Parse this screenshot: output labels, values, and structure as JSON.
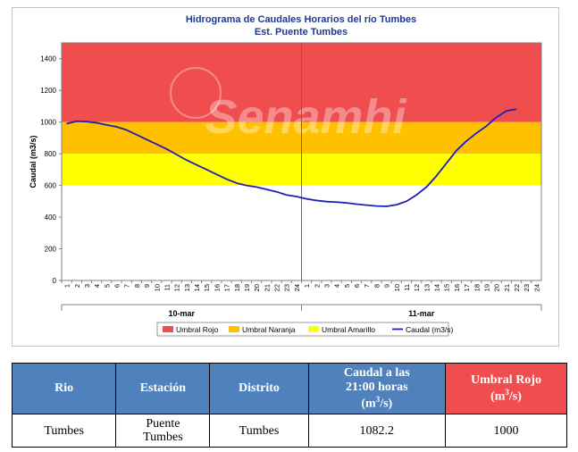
{
  "chart_data": {
    "type": "line",
    "title": "Hidrograma de Caudales Horarios del río Tumbes",
    "subtitle": "Est. Puente Tumbes",
    "ylabel": "Caudal  (m3/s)",
    "ylim": [
      0,
      1500
    ],
    "yticks": [
      0,
      200,
      400,
      600,
      800,
      1000,
      1200,
      1400
    ],
    "x_days": [
      "10-mar",
      "11-mar"
    ],
    "x_hour_labels": [
      "1",
      "2",
      "3",
      "4",
      "5",
      "6",
      "7",
      "8",
      "9",
      "10",
      "11",
      "12",
      "13",
      "14",
      "15",
      "16",
      "17",
      "18",
      "19",
      "20",
      "21",
      "22",
      "23",
      "24",
      "1",
      "2",
      "3",
      "4",
      "5",
      "6",
      "7",
      "8",
      "9",
      "10",
      "11",
      "12",
      "13",
      "14",
      "15",
      "16",
      "17",
      "18",
      "19",
      "20",
      "21",
      "22",
      "23",
      "24"
    ],
    "bands": [
      {
        "name": "Umbral Rojo",
        "from": 1000,
        "to": 1500,
        "color": "#f04e4e"
      },
      {
        "name": "Umbral Naranja",
        "from": 800,
        "to": 1000,
        "color": "#ffc000"
      },
      {
        "name": "Umbral Amarillo",
        "from": 600,
        "to": 800,
        "color": "#ffff00"
      }
    ],
    "series": [
      {
        "name": "Caudal (m3/s)",
        "color": "#1f1fb4",
        "x": [
          0,
          1,
          2,
          3,
          4,
          5,
          6,
          7,
          8,
          9,
          10,
          11,
          12,
          13,
          14,
          15,
          16,
          17,
          18,
          19,
          20,
          21,
          22,
          23,
          24,
          25,
          26,
          27,
          28,
          29,
          30,
          31,
          32,
          33,
          34,
          35,
          36,
          37,
          38,
          39,
          40,
          41,
          42,
          43,
          44,
          45
        ],
        "values": [
          990,
          1005,
          1003,
          995,
          982,
          970,
          950,
          920,
          890,
          860,
          830,
          795,
          760,
          730,
          700,
          670,
          640,
          615,
          600,
          590,
          575,
          560,
          540,
          530,
          515,
          505,
          498,
          495,
          490,
          482,
          476,
          470,
          468,
          478,
          500,
          540,
          590,
          660,
          740,
          820,
          880,
          930,
          975,
          1030,
          1070,
          1082
        ]
      }
    ],
    "legend": "bottom"
  },
  "watermark": "Senamhi",
  "table": {
    "headers": [
      "Rio",
      "Estación",
      "Distrito",
      "Caudal a las 21:00 horas (m3/s)",
      "Umbral Rojo (m3/s)"
    ],
    "h_caudal_line1": "Caudal a las",
    "h_caudal_line2": "21:00 horas",
    "h_caudal_unit": "(m",
    "h_caudal_unit_sup": "3",
    "h_caudal_unit_end": "/s)",
    "h_rojo_line1": "Umbral Rojo",
    "h_rojo_unit": "(m",
    "h_rojo_unit_sup": "3",
    "h_rojo_unit_end": "/s)",
    "row": {
      "rio": "Tumbes",
      "estacion_line1": "Puente",
      "estacion_line2": "Tumbes",
      "distrito": "Tumbes",
      "caudal": "1082.2",
      "umbral_rojo": "1000"
    },
    "colors": {
      "header_blue": "#4f81bd",
      "header_red": "#f04e4e"
    }
  }
}
